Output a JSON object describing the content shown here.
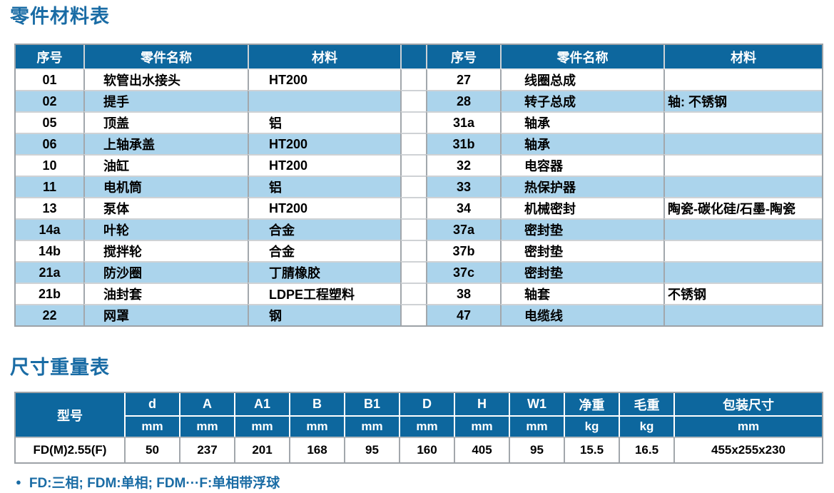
{
  "titles": {
    "parts": "零件材料表",
    "dimensions": "尺寸重量表"
  },
  "parts_table": {
    "headers": [
      "序号",
      "零件名称",
      "材料"
    ],
    "left_rows": [
      {
        "no": "01",
        "name": "软管出水接头",
        "material": "HT200"
      },
      {
        "no": "02",
        "name": "提手",
        "material": ""
      },
      {
        "no": "05",
        "name": "顶盖",
        "material": "铝"
      },
      {
        "no": "06",
        "name": "上轴承盖",
        "material": "HT200"
      },
      {
        "no": "10",
        "name": "油缸",
        "material": "HT200"
      },
      {
        "no": "11",
        "name": "电机筒",
        "material": "铝"
      },
      {
        "no": "13",
        "name": "泵体",
        "material": "HT200"
      },
      {
        "no": "14a",
        "name": "叶轮",
        "material": "合金"
      },
      {
        "no": "14b",
        "name": "搅拌轮",
        "material": "合金"
      },
      {
        "no": "21a",
        "name": "防沙圈",
        "material": "丁腈橡胶"
      },
      {
        "no": "21b",
        "name": "油封套",
        "material": "LDPE工程塑料"
      },
      {
        "no": "22",
        "name": "网罩",
        "material": "钢"
      }
    ],
    "right_rows": [
      {
        "no": "27",
        "name": "线圈总成",
        "material": ""
      },
      {
        "no": "28",
        "name": "转子总成",
        "material": "轴: 不锈钢"
      },
      {
        "no": "31a",
        "name": "轴承",
        "material": ""
      },
      {
        "no": "31b",
        "name": "轴承",
        "material": ""
      },
      {
        "no": "32",
        "name": "电容器",
        "material": ""
      },
      {
        "no": "33",
        "name": "热保护器",
        "material": ""
      },
      {
        "no": "34",
        "name": "机械密封",
        "material": "陶瓷-碳化硅/石墨-陶瓷"
      },
      {
        "no": "37a",
        "name": "密封垫",
        "material": ""
      },
      {
        "no": "37b",
        "name": "密封垫",
        "material": ""
      },
      {
        "no": "37c",
        "name": "密封垫",
        "material": ""
      },
      {
        "no": "38",
        "name": "轴套",
        "material": "不锈钢"
      },
      {
        "no": "47",
        "name": "电缆线",
        "material": ""
      }
    ]
  },
  "dimensions_table": {
    "model_header": "型号",
    "columns": [
      {
        "label": "d",
        "unit": "mm"
      },
      {
        "label": "A",
        "unit": "mm"
      },
      {
        "label": "A1",
        "unit": "mm"
      },
      {
        "label": "B",
        "unit": "mm"
      },
      {
        "label": "B1",
        "unit": "mm"
      },
      {
        "label": "D",
        "unit": "mm"
      },
      {
        "label": "H",
        "unit": "mm"
      },
      {
        "label": "W1",
        "unit": "mm"
      },
      {
        "label": "净重",
        "unit": "kg"
      },
      {
        "label": "毛重",
        "unit": "kg"
      },
      {
        "label": "包装尺寸",
        "unit": "mm"
      }
    ],
    "rows": [
      {
        "model": "FD(M)2.55(F)",
        "values": [
          "50",
          "237",
          "201",
          "168",
          "95",
          "160",
          "405",
          "95",
          "15.5",
          "16.5",
          "455x255x230"
        ]
      }
    ]
  },
  "footnote": {
    "bullet": "●",
    "text": "FD:三相; FDM:单相; FDM···F:单相带浮球"
  },
  "colors": {
    "header_blue": "#0d679e",
    "alt_row_blue": "#abd4ec",
    "title_blue": "#1a6ca5",
    "border_gray": "#9da2a7"
  }
}
